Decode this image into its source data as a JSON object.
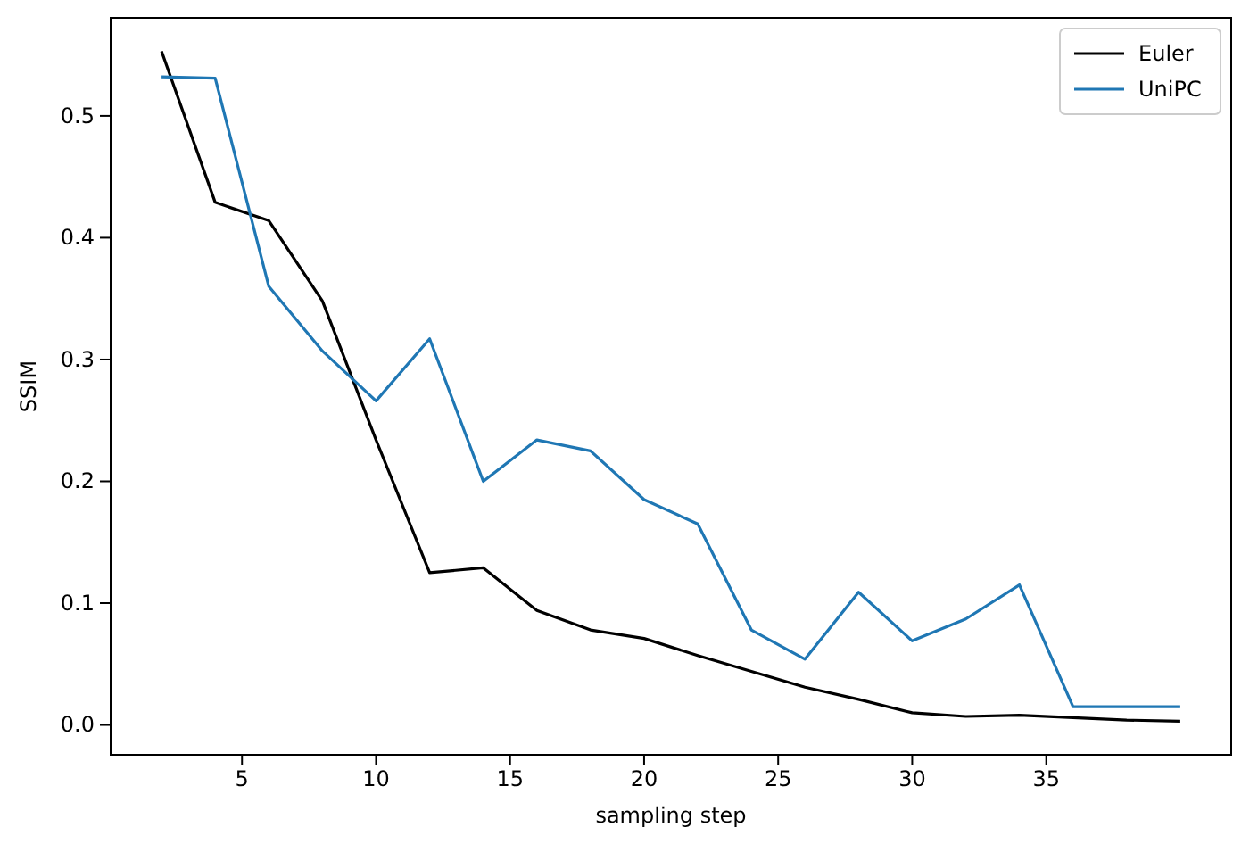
{
  "chart_data": {
    "type": "line",
    "xlabel": "sampling step",
    "ylabel": "SSIM",
    "x": [
      2,
      4,
      6,
      8,
      10,
      12,
      14,
      16,
      18,
      20,
      22,
      24,
      26,
      28,
      30,
      32,
      34,
      36,
      38,
      40
    ],
    "series": [
      {
        "name": "Euler",
        "color": "#000000",
        "values": [
          0.553,
          0.429,
          0.414,
          0.348,
          0.234,
          0.125,
          0.129,
          0.094,
          0.078,
          0.071,
          0.057,
          0.044,
          0.031,
          0.021,
          0.01,
          0.007,
          0.008,
          0.006,
          0.004,
          0.003
        ]
      },
      {
        "name": "UniPC",
        "color": "#1f77b4",
        "values": [
          0.532,
          0.531,
          0.36,
          0.307,
          0.266,
          0.317,
          0.2,
          0.234,
          0.225,
          0.185,
          0.165,
          0.078,
          0.054,
          0.109,
          0.069,
          0.087,
          0.115,
          0.015,
          0.015,
          0.015
        ]
      }
    ],
    "xlim": [
      0.1,
      41.9
    ],
    "xticks": [
      5,
      10,
      15,
      20,
      25,
      30,
      35
    ],
    "ylim": [
      -0.0245,
      0.5805
    ],
    "yticks": [
      {
        "value": 0,
        "label": "0.0"
      },
      0.1,
      0.2,
      0.3,
      0.4,
      0.5
    ],
    "legend": "top right",
    "grid": false
  }
}
